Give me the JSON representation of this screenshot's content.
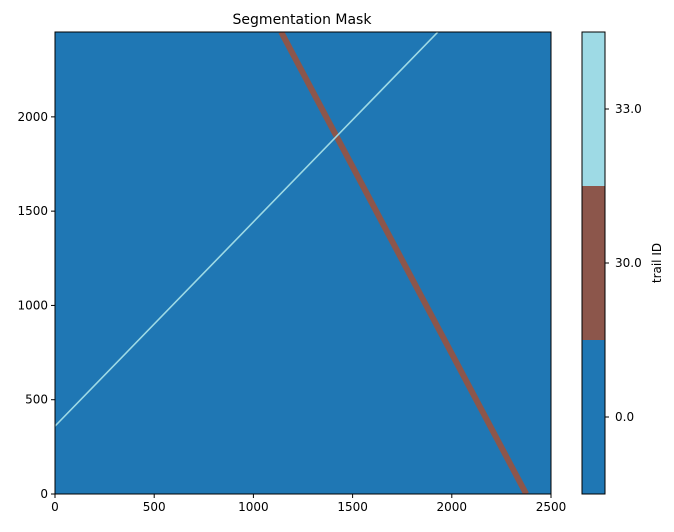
{
  "chart_data": {
    "type": "heatmap",
    "title": "Segmentation Mask",
    "xlabel": "",
    "ylabel": "",
    "xlim": [
      0,
      2500
    ],
    "ylim": [
      0,
      2450
    ],
    "x_ticks": [
      0,
      500,
      1000,
      1500,
      2000,
      2500
    ],
    "y_ticks": [
      0,
      500,
      1000,
      1500,
      2000
    ],
    "grid": false,
    "background_value": 0.0,
    "trails": [
      {
        "value": 30.0,
        "color": "#8c564b",
        "start": [
          1140,
          2450
        ],
        "end": [
          2375,
          0
        ],
        "width_data": 30
      },
      {
        "value": 33.0,
        "color": "#9edae5",
        "start": [
          0,
          360
        ],
        "end": [
          1930,
          2450
        ],
        "width_data": 8
      }
    ],
    "colorbar": {
      "label": "trail ID",
      "ticks": [
        "0.0",
        "30.0",
        "33.0"
      ],
      "segments": [
        {
          "value": 0.0,
          "color": "#1f77b4"
        },
        {
          "value": 30.0,
          "color": "#8c564b"
        },
        {
          "value": 33.0,
          "color": "#9edae5"
        }
      ]
    }
  }
}
